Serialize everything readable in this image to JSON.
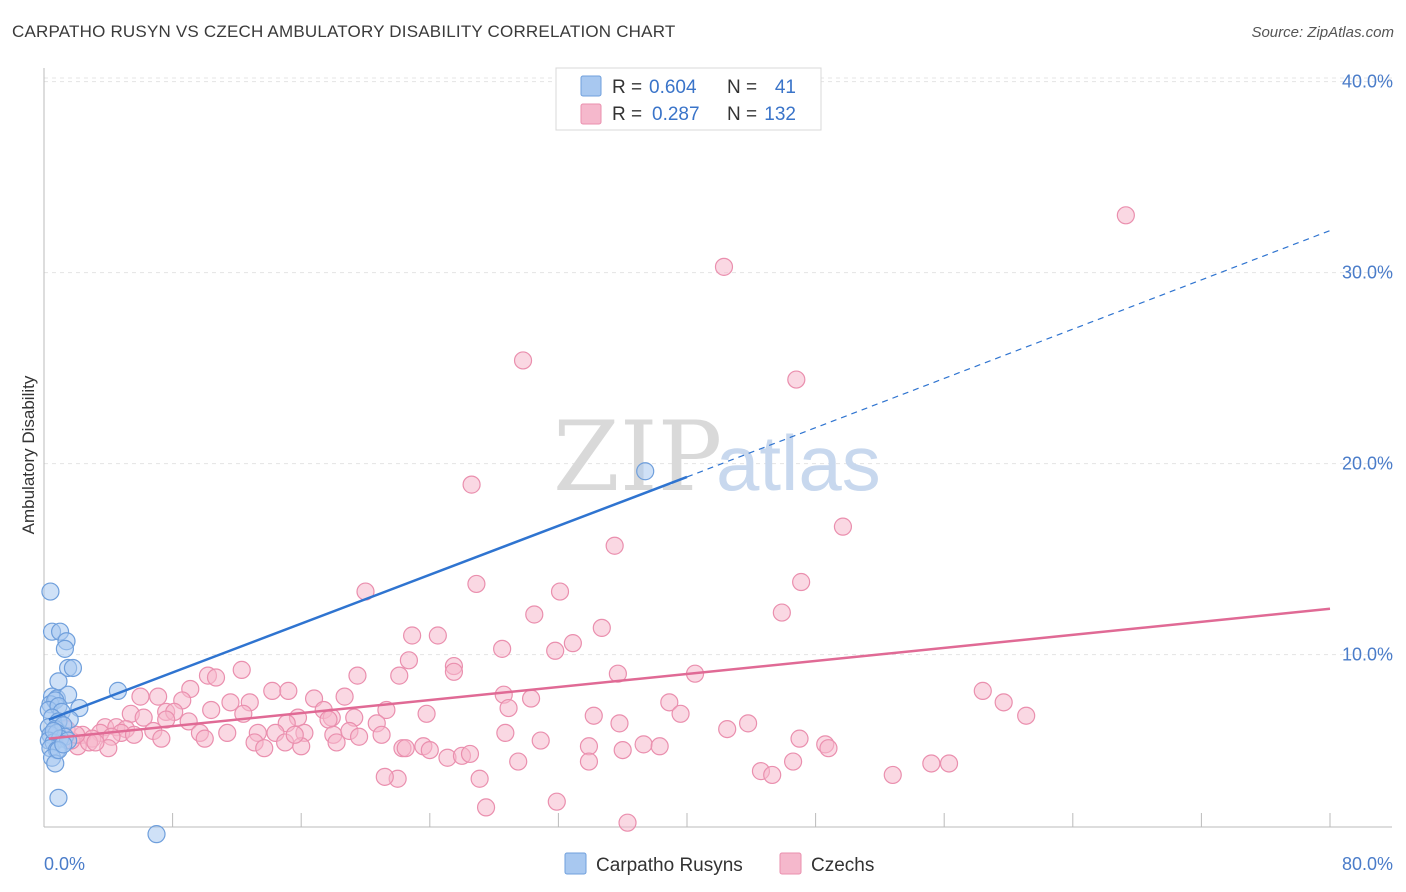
{
  "header": {
    "title": "CARPATHO RUSYN VS CZECH AMBULATORY DISABILITY CORRELATION CHART",
    "source": "Source: ZipAtlas.com"
  },
  "watermark": {
    "zip": "ZIP",
    "atlas": "atlas"
  },
  "legend_top": {
    "rows": [
      {
        "r_label": "R =",
        "r_value": "0.604",
        "n_label": "N =",
        "n_value": "41",
        "color": "#a8c8f0"
      },
      {
        "r_label": "R =",
        "r_value": "0.287",
        "n_label": "N =",
        "n_value": "132",
        "color": "#f5b8cc"
      }
    ]
  },
  "legend_bottom": {
    "items": [
      {
        "label": "Carpatho Rusyns",
        "color": "#a8c8f0"
      },
      {
        "label": "Czechs",
        "color": "#f5b8cc"
      }
    ]
  },
  "chart_data": {
    "type": "scatter",
    "title": "CARPATHO RUSYN VS CZECH AMBULATORY DISABILITY CORRELATION CHART",
    "xlabel": "",
    "ylabel": "Ambulatory Disability",
    "xlim": [
      0,
      80
    ],
    "ylim": [
      0,
      42
    ],
    "x_tick_labels": [
      {
        "value": 0,
        "label": "0.0%"
      },
      {
        "value": 80,
        "label": "80.0%"
      }
    ],
    "y_tick_labels": [
      {
        "value": 10,
        "label": "10.0%"
      },
      {
        "value": 20,
        "label": "20.0%"
      },
      {
        "value": 30,
        "label": "30.0%"
      },
      {
        "value": 40,
        "label": "40.0%"
      }
    ],
    "x_minor_ticks": [
      8,
      16,
      24,
      32,
      40,
      48,
      56,
      64,
      72,
      80
    ],
    "series": [
      {
        "name": "Carpatho Rusyns",
        "color": "#a8c8f0",
        "edge": "#6f9fdc",
        "line_color": "#2f74d0",
        "trend": {
          "x0": 0.3,
          "y0": 6.6,
          "x1": 40,
          "y1": 19.3,
          "dash_to_x": 80,
          "dash_to_y": 32.2
        },
        "points": [
          [
            0.4,
            13.3
          ],
          [
            0.5,
            11.2
          ],
          [
            1.0,
            11.2
          ],
          [
            1.4,
            10.7
          ],
          [
            1.3,
            10.3
          ],
          [
            1.5,
            9.3
          ],
          [
            1.8,
            9.3
          ],
          [
            0.9,
            8.6
          ],
          [
            0.5,
            7.8
          ],
          [
            0.8,
            7.7
          ],
          [
            1.5,
            7.9
          ],
          [
            0.4,
            7.4
          ],
          [
            0.7,
            7.6
          ],
          [
            2.2,
            7.2
          ],
          [
            0.3,
            7.1
          ],
          [
            0.9,
            7.3
          ],
          [
            1.1,
            7.0
          ],
          [
            1.6,
            6.6
          ],
          [
            0.5,
            6.7
          ],
          [
            0.9,
            6.5
          ],
          [
            0.3,
            6.2
          ],
          [
            0.7,
            6.1
          ],
          [
            1.2,
            6.3
          ],
          [
            0.4,
            5.8
          ],
          [
            0.8,
            5.9
          ],
          [
            1.3,
            5.7
          ],
          [
            0.3,
            5.5
          ],
          [
            0.6,
            5.4
          ],
          [
            1.0,
            5.6
          ],
          [
            1.5,
            5.5
          ],
          [
            0.4,
            5.1
          ],
          [
            0.8,
            5.0
          ],
          [
            0.5,
            4.6
          ],
          [
            0.7,
            4.3
          ],
          [
            0.9,
            5.0
          ],
          [
            1.2,
            5.3
          ],
          [
            0.9,
            2.5
          ],
          [
            4.6,
            8.1
          ],
          [
            7.0,
            0.6
          ],
          [
            37.4,
            19.6
          ],
          [
            0.6,
            6.0
          ]
        ]
      },
      {
        "name": "Czechs",
        "color": "#f5b8cc",
        "edge": "#ea8fae",
        "line_color": "#e06a95",
        "trend": {
          "x0": 0.3,
          "y0": 5.6,
          "x1": 80,
          "y1": 12.4
        },
        "points": [
          [
            67.3,
            33.0
          ],
          [
            42.3,
            30.3
          ],
          [
            29.8,
            25.4
          ],
          [
            46.8,
            24.4
          ],
          [
            26.6,
            18.9
          ],
          [
            49.7,
            16.7
          ],
          [
            35.5,
            15.7
          ],
          [
            26.9,
            13.7
          ],
          [
            32.1,
            13.3
          ],
          [
            47.1,
            13.8
          ],
          [
            20.0,
            13.3
          ],
          [
            30.5,
            12.1
          ],
          [
            45.9,
            12.2
          ],
          [
            34.7,
            11.4
          ],
          [
            32.9,
            10.6
          ],
          [
            22.9,
            11.0
          ],
          [
            24.5,
            11.0
          ],
          [
            28.5,
            10.3
          ],
          [
            31.8,
            10.2
          ],
          [
            22.7,
            9.7
          ],
          [
            25.5,
            9.4
          ],
          [
            25.5,
            9.1
          ],
          [
            35.7,
            9.0
          ],
          [
            40.5,
            9.0
          ],
          [
            12.3,
            9.2
          ],
          [
            10.2,
            8.9
          ],
          [
            10.7,
            8.8
          ],
          [
            19.5,
            8.9
          ],
          [
            22.1,
            8.9
          ],
          [
            9.1,
            8.2
          ],
          [
            14.2,
            8.1
          ],
          [
            15.2,
            8.1
          ],
          [
            6.0,
            7.8
          ],
          [
            7.1,
            7.8
          ],
          [
            8.6,
            7.6
          ],
          [
            16.8,
            7.7
          ],
          [
            18.7,
            7.8
          ],
          [
            28.6,
            7.9
          ],
          [
            30.3,
            7.7
          ],
          [
            38.9,
            7.5
          ],
          [
            58.4,
            8.1
          ],
          [
            59.7,
            7.5
          ],
          [
            11.6,
            7.5
          ],
          [
            12.8,
            7.5
          ],
          [
            17.4,
            7.1
          ],
          [
            7.6,
            7.0
          ],
          [
            8.1,
            7.0
          ],
          [
            10.4,
            7.1
          ],
          [
            12.4,
            6.9
          ],
          [
            15.8,
            6.7
          ],
          [
            17.9,
            6.7
          ],
          [
            19.3,
            6.7
          ],
          [
            21.3,
            7.1
          ],
          [
            23.8,
            6.9
          ],
          [
            28.9,
            7.2
          ],
          [
            34.2,
            6.8
          ],
          [
            39.6,
            6.9
          ],
          [
            61.1,
            6.8
          ],
          [
            5.4,
            6.9
          ],
          [
            6.2,
            6.7
          ],
          [
            9.0,
            6.5
          ],
          [
            15.1,
            6.4
          ],
          [
            17.7,
            6.6
          ],
          [
            20.7,
            6.4
          ],
          [
            35.8,
            6.4
          ],
          [
            42.5,
            6.1
          ],
          [
            43.8,
            6.4
          ],
          [
            3.8,
            6.2
          ],
          [
            4.5,
            6.2
          ],
          [
            5.1,
            6.1
          ],
          [
            3.5,
            5.9
          ],
          [
            4.8,
            5.9
          ],
          [
            6.8,
            6.0
          ],
          [
            9.7,
            5.9
          ],
          [
            11.4,
            5.9
          ],
          [
            13.3,
            5.9
          ],
          [
            14.4,
            5.9
          ],
          [
            16.2,
            5.9
          ],
          [
            18.0,
            5.8
          ],
          [
            19.0,
            6.0
          ],
          [
            21.0,
            5.8
          ],
          [
            28.7,
            5.9
          ],
          [
            2.4,
            5.8
          ],
          [
            3.0,
            5.6
          ],
          [
            4.2,
            5.7
          ],
          [
            5.6,
            5.8
          ],
          [
            7.3,
            5.6
          ],
          [
            13.1,
            5.4
          ],
          [
            15.0,
            5.4
          ],
          [
            19.6,
            5.7
          ],
          [
            30.9,
            5.5
          ],
          [
            47.0,
            5.6
          ],
          [
            48.6,
            5.3
          ],
          [
            2.1,
            5.2
          ],
          [
            2.8,
            5.4
          ],
          [
            4.0,
            5.1
          ],
          [
            13.7,
            5.1
          ],
          [
            16.0,
            5.2
          ],
          [
            22.3,
            5.1
          ],
          [
            23.6,
            5.2
          ],
          [
            33.9,
            5.2
          ],
          [
            36.0,
            5.0
          ],
          [
            37.3,
            5.3
          ],
          [
            38.3,
            5.2
          ],
          [
            48.8,
            5.1
          ],
          [
            1.7,
            5.5
          ],
          [
            24.0,
            5.0
          ],
          [
            25.1,
            4.6
          ],
          [
            26.0,
            4.7
          ],
          [
            26.5,
            4.8
          ],
          [
            29.5,
            4.4
          ],
          [
            33.9,
            4.4
          ],
          [
            46.6,
            4.4
          ],
          [
            55.2,
            4.3
          ],
          [
            56.3,
            4.3
          ],
          [
            44.6,
            3.9
          ],
          [
            22.0,
            3.5
          ],
          [
            21.2,
            3.6
          ],
          [
            27.1,
            3.5
          ],
          [
            45.3,
            3.7
          ],
          [
            52.8,
            3.7
          ],
          [
            27.5,
            2.0
          ],
          [
            31.9,
            2.3
          ],
          [
            36.3,
            1.2
          ],
          [
            7.6,
            6.6
          ],
          [
            1.4,
            6.1
          ],
          [
            2.0,
            5.8
          ],
          [
            3.2,
            5.4
          ],
          [
            10.0,
            5.6
          ],
          [
            15.6,
            5.8
          ],
          [
            18.2,
            5.4
          ],
          [
            22.5,
            5.1
          ]
        ]
      }
    ]
  }
}
